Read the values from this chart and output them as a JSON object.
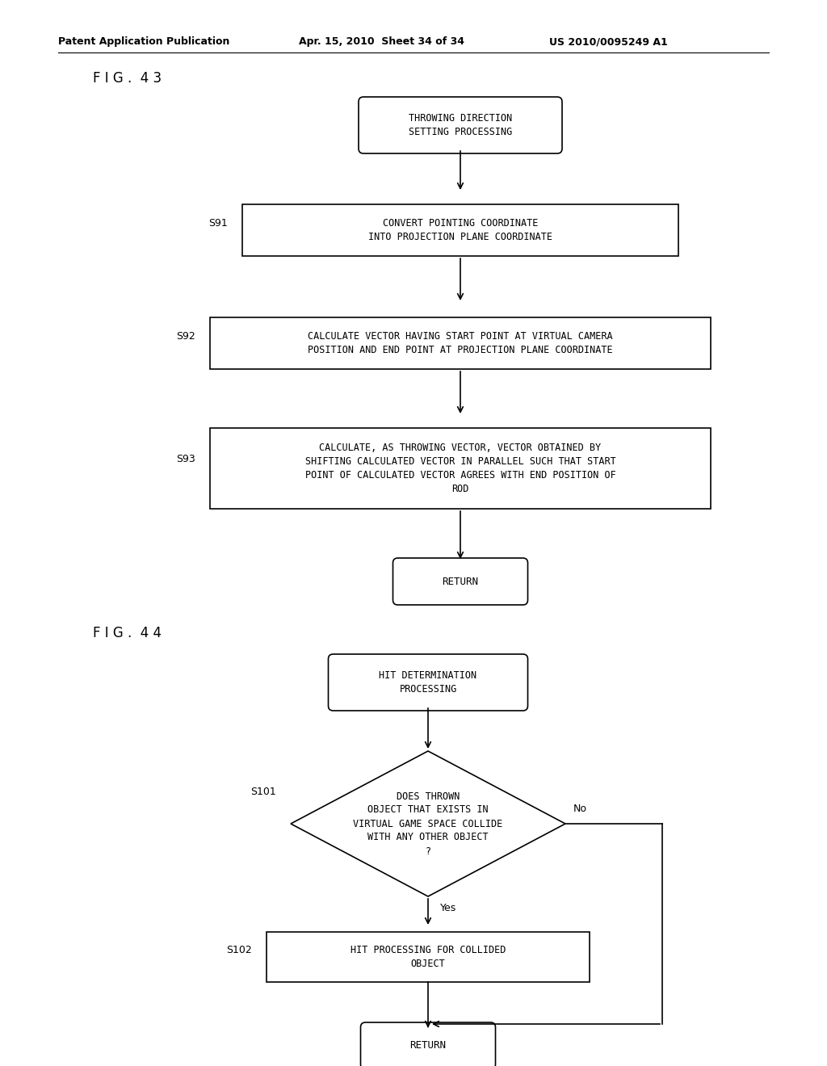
{
  "bg_color": "#ffffff",
  "header_left": "Patent Application Publication",
  "header_mid": "Apr. 15, 2010  Sheet 34 of 34",
  "header_right": "US 2010/0095249 A1",
  "fig43_label": "F I G .  4 3",
  "fig44_label": "F I G .  4 4",
  "fig43": {
    "start_text": "THROWING DIRECTION\nSETTING PROCESSING",
    "steps": [
      {
        "label": "S91",
        "text": "CONVERT POINTING COORDINATE\nINTO PROJECTION PLANE COORDINATE"
      },
      {
        "label": "S92",
        "text": "CALCULATE VECTOR HAVING START POINT AT VIRTUAL CAMERA\nPOSITION AND END POINT AT PROJECTION PLANE COORDINATE"
      },
      {
        "label": "S93",
        "text": "CALCULATE, AS THROWING VECTOR, VECTOR OBTAINED BY\nSHIFTING CALCULATED VECTOR IN PARALLEL SUCH THAT START\nPOINT OF CALCULATED VECTOR AGREES WITH END POSITION OF\nROD"
      }
    ],
    "end_text": "RETURN"
  },
  "fig44": {
    "start_text": "HIT DETERMINATION\nPROCESSING",
    "diamond_label": "S101",
    "diamond_text": "DOES THROWN\nOBJECT THAT EXISTS IN\nVIRTUAL GAME SPACE COLLIDE\nWITH ANY OTHER OBJECT\n?",
    "yes_label": "Yes",
    "no_label": "No",
    "step_label": "S102",
    "step_text": "HIT PROCESSING FOR COLLIDED\nOBJECT",
    "end_text": "RETURN"
  },
  "font_family": "monospace",
  "text_color": "#000000",
  "line_color": "#000000"
}
